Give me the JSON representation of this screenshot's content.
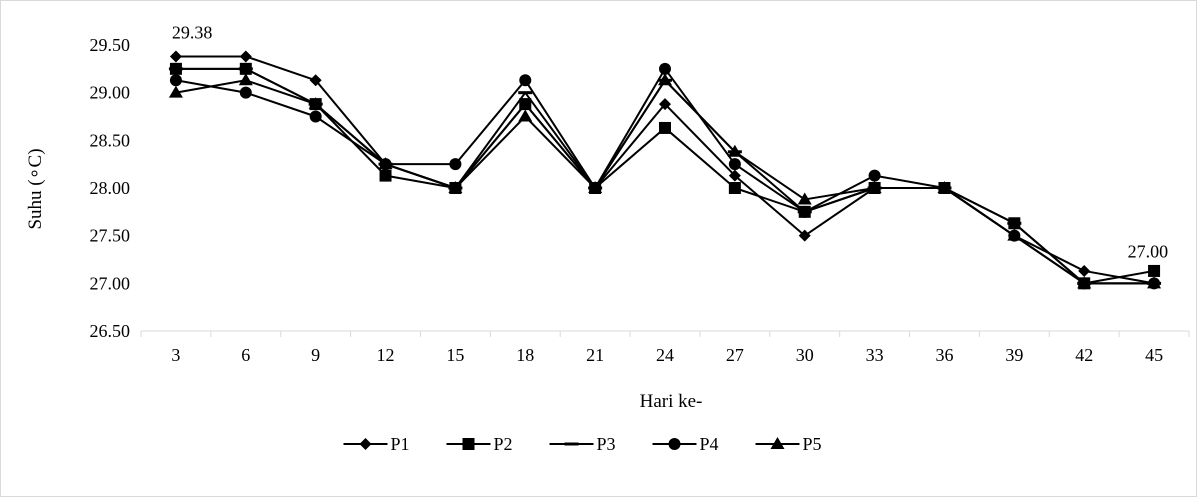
{
  "chart_data": {
    "type": "line",
    "title": "",
    "xlabel": "Hari ke-",
    "ylabel": "Suhu (∘C)",
    "categories": [
      "3",
      "6",
      "9",
      "12",
      "15",
      "18",
      "21",
      "24",
      "27",
      "30",
      "33",
      "36",
      "39",
      "42",
      "45"
    ],
    "ylim": [
      26.5,
      29.5
    ],
    "yticks": [
      "26.50",
      "27.00",
      "27.50",
      "28.00",
      "28.50",
      "29.00",
      "29.50"
    ],
    "grid": false,
    "legend_position": "bottom",
    "series": [
      {
        "name": "P1",
        "marker": "diamond",
        "values": [
          29.38,
          29.38,
          29.13,
          28.25,
          28.0,
          28.88,
          28.0,
          28.88,
          28.13,
          27.5,
          28.0,
          28.0,
          27.5,
          27.13,
          27.0
        ]
      },
      {
        "name": "P2",
        "marker": "square",
        "values": [
          29.25,
          29.25,
          28.88,
          28.13,
          28.0,
          28.88,
          28.0,
          28.63,
          28.0,
          27.75,
          28.0,
          28.0,
          27.63,
          27.0,
          27.13
        ]
      },
      {
        "name": "P3",
        "marker": "dash",
        "values": [
          29.25,
          29.25,
          28.88,
          28.25,
          28.0,
          29.0,
          28.0,
          29.13,
          28.38,
          27.75,
          28.0,
          28.0,
          27.63,
          27.0,
          27.0
        ]
      },
      {
        "name": "P4",
        "marker": "circle",
        "values": [
          29.13,
          29.0,
          28.75,
          28.25,
          28.25,
          29.13,
          28.0,
          29.25,
          28.25,
          27.75,
          28.13,
          28.0,
          27.5,
          27.0,
          27.0
        ]
      },
      {
        "name": "P5",
        "marker": "triangle",
        "values": [
          29.0,
          29.13,
          28.88,
          28.25,
          28.0,
          28.75,
          28.0,
          29.13,
          28.38,
          27.88,
          28.0,
          28.0,
          27.5,
          27.0,
          27.0
        ]
      }
    ],
    "annotations": [
      {
        "text": "29.38",
        "series": "P1",
        "category": "3"
      },
      {
        "text": "27.00",
        "series": "P1",
        "category": "45"
      }
    ],
    "line_color": "#000000"
  }
}
